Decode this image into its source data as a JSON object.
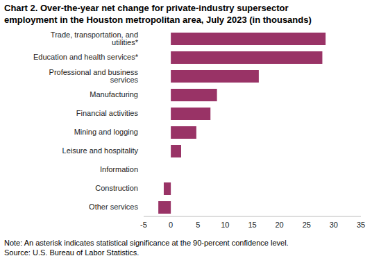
{
  "chart_data": {
    "type": "bar",
    "orientation": "horizontal",
    "title": "Chart 2. Over-the-year net change for private-industry supersector employment in the Houston metropolitan area, July 2023 (in thousands)",
    "categories": [
      "Trade, transportation, and utilities*",
      "Education and health services*",
      "Professional and business services",
      "Manufacturing",
      "Financial activities",
      "Mining and logging",
      "Leisure and hospitality",
      "Information",
      "Construction",
      "Other services"
    ],
    "values": [
      28.5,
      27.9,
      16.2,
      8.5,
      7.3,
      4.7,
      1.9,
      0,
      -1.3,
      -2.3
    ],
    "color": "#993366",
    "xlim": [
      -5,
      35
    ],
    "xticks": [
      -5,
      0,
      5,
      10,
      15,
      20,
      25,
      30,
      35
    ],
    "grid": false,
    "note": "Note: An asterisk indicates statistical significance at the 90-percent confidence level.",
    "source": "Source: U.S. Bureau of Labor Statistics."
  }
}
